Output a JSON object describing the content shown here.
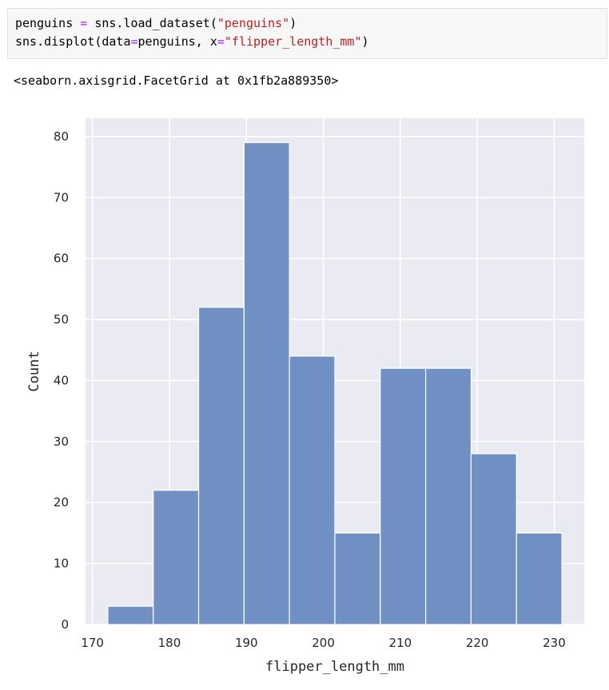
{
  "code_cell": {
    "line1": {
      "var": "penguins",
      "eq": "=",
      "call": "sns.load_dataset(",
      "arg": "\"penguins\"",
      "close": ")"
    },
    "line2": {
      "call": "sns.displot(data",
      "eq": "=",
      "mid": "penguins, x",
      "eq2": "=",
      "arg": "\"flipper_length_mm\"",
      "close": ")"
    }
  },
  "output": {
    "text": "<seaborn.axisgrid.FacetGrid at 0x1fb2a889350>"
  },
  "colors": {
    "bar_fill": "#7090c3",
    "bar_edge": "#ffffff",
    "plot_bg": "#eaeaf2",
    "grid": "#ffffff"
  },
  "chart_data": {
    "type": "bar",
    "xlabel": "flipper_length_mm",
    "ylabel": "Count",
    "xlim": [
      169.1,
      233.9
    ],
    "ylim": [
      0,
      83
    ],
    "x_ticks": [
      170,
      180,
      190,
      200,
      210,
      220,
      230
    ],
    "y_ticks": [
      0,
      10,
      20,
      30,
      40,
      50,
      60,
      70,
      80
    ],
    "bin_edges": [
      172,
      177.9,
      183.8,
      189.7,
      195.6,
      201.5,
      207.4,
      213.3,
      219.2,
      225.1,
      231
    ],
    "values": [
      3,
      22,
      52,
      79,
      44,
      15,
      42,
      42,
      28,
      15
    ],
    "grid": true
  }
}
